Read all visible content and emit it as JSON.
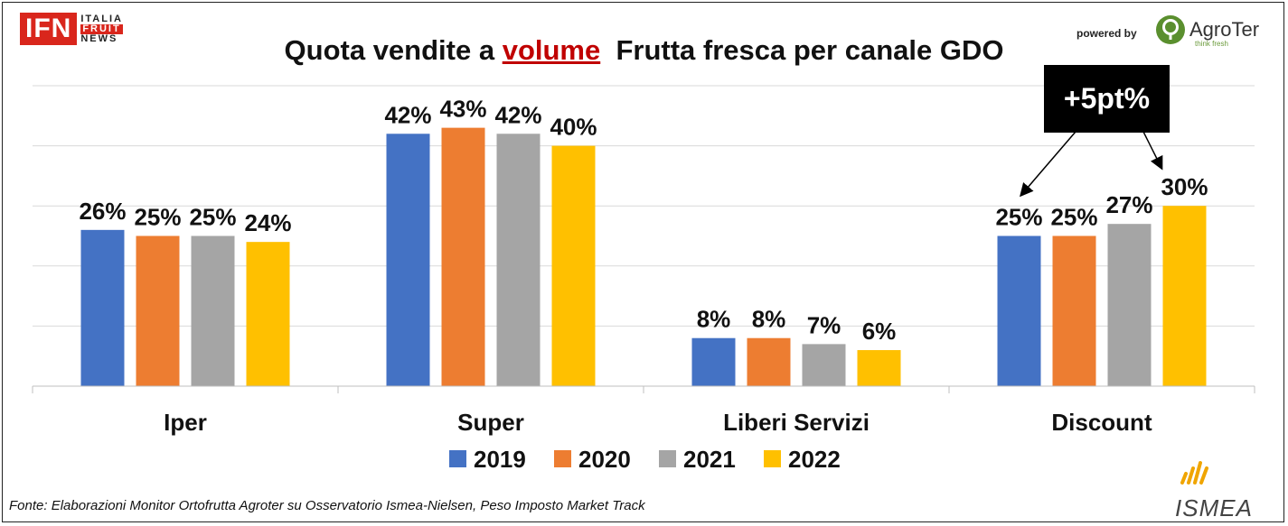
{
  "header": {
    "logo_main": "IFN",
    "logo_sub": [
      "ITALIA",
      "FRUIT",
      "NEWS"
    ],
    "title_before": "Quota vendite a ",
    "title_highlight": "volume",
    "title_after": "  Frutta fresca per canale GDO",
    "powered_by": "powered by",
    "agroter_name": "AgroTer",
    "agroter_tagline": "think fresh"
  },
  "callout": {
    "text": "+5pt%"
  },
  "footer": {
    "source": "Fonte: Elaborazioni Monitor Ortofrutta Agroter su Osservatorio Ismea-Nielsen, Peso Imposto Market Track",
    "ismea_logo": "ISMEA"
  },
  "colors": {
    "2019": "#4472c4",
    "2020": "#ed7d31",
    "2021": "#a5a5a5",
    "2022": "#ffc000",
    "accent": "#c00000"
  },
  "chart_data": {
    "type": "bar",
    "categories": [
      "Iper",
      "Super",
      "Liberi Servizi",
      "Discount"
    ],
    "series": [
      {
        "name": "2019",
        "values": [
          26,
          42,
          8,
          25
        ],
        "labels": [
          "26%",
          "42%",
          "8%",
          "25%"
        ]
      },
      {
        "name": "2020",
        "values": [
          25,
          43,
          8,
          25
        ],
        "labels": [
          "25%",
          "43%",
          "8%",
          "25%"
        ]
      },
      {
        "name": "2021",
        "values": [
          25,
          42,
          7,
          27
        ],
        "labels": [
          "25%",
          "42%",
          "7%",
          "27%"
        ]
      },
      {
        "name": "2022",
        "values": [
          24,
          40,
          6,
          30
        ],
        "labels": [
          "24%",
          "40%",
          "6%",
          "30%"
        ]
      }
    ],
    "ylim": [
      0,
      50
    ],
    "grid": true,
    "legend": "bottom"
  }
}
